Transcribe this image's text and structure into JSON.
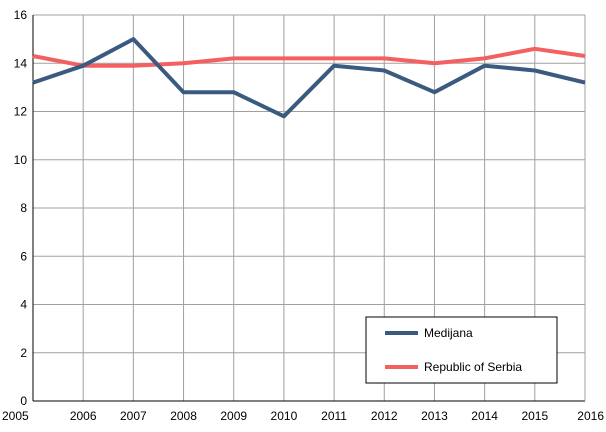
{
  "chart_data": {
    "type": "line",
    "title": "",
    "xlabel": "",
    "ylabel": "",
    "x": [
      2005,
      2006,
      2007,
      2008,
      2009,
      2010,
      2011,
      2012,
      2013,
      2014,
      2015,
      2016
    ],
    "ylim": [
      0,
      16
    ],
    "yticks": [
      0,
      2,
      4,
      6,
      8,
      10,
      12,
      14,
      16
    ],
    "grid": true,
    "legend_position": "bottom-right",
    "series": [
      {
        "name": "Medijana",
        "color": "#3a5a80",
        "values": [
          13.2,
          13.9,
          15.0,
          12.8,
          12.8,
          11.8,
          13.9,
          13.7,
          12.8,
          13.9,
          13.7,
          13.2
        ]
      },
      {
        "name": "Republic of Serbia",
        "color": "#f26060",
        "values": [
          14.3,
          13.9,
          13.9,
          14.0,
          14.2,
          14.2,
          14.2,
          14.2,
          14.0,
          14.2,
          14.6,
          14.3
        ]
      }
    ]
  }
}
